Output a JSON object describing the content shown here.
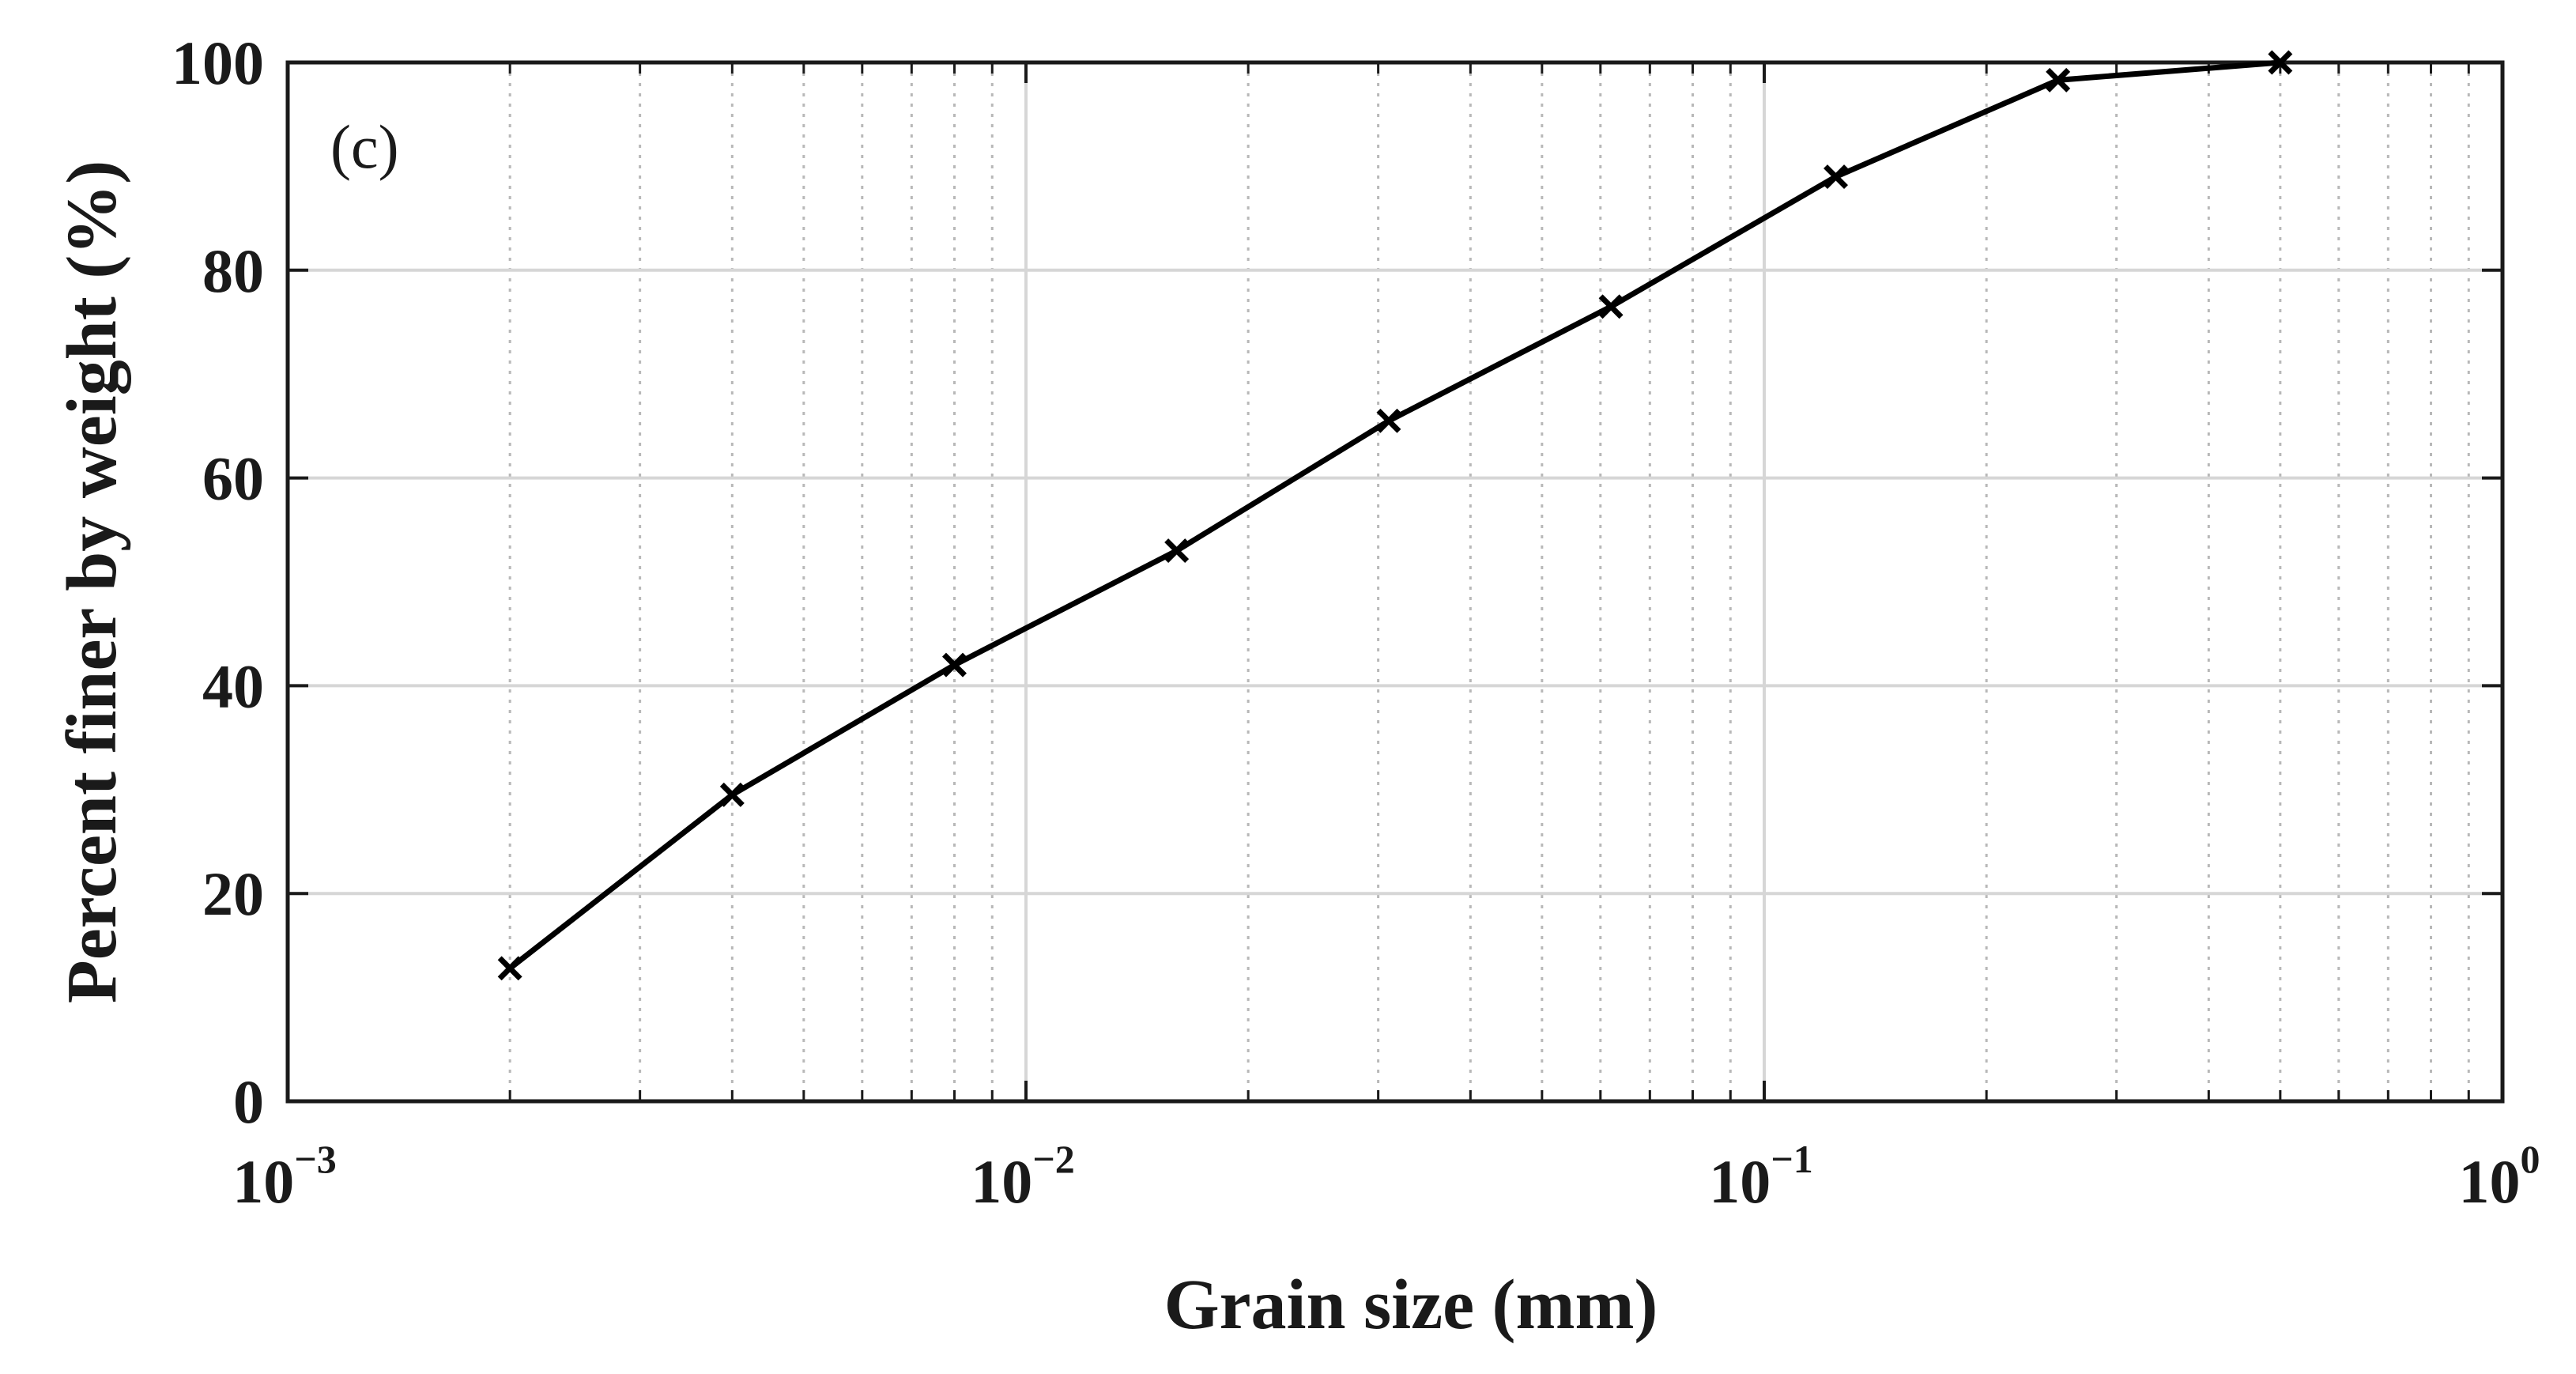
{
  "chart_data": {
    "type": "line",
    "panel_label": "(c)",
    "xlabel": "Grain size (mm)",
    "ylabel": "Percent  finer  by weight (%)",
    "x_scale": "log",
    "xlim": [
      0.001,
      1
    ],
    "ylim": [
      0,
      100
    ],
    "x_ticks": [
      {
        "base": "10",
        "exp": "−3"
      },
      {
        "base": "10",
        "exp": "−2"
      },
      {
        "base": "10",
        "exp": "−1"
      },
      {
        "base": "10",
        "exp": "0"
      }
    ],
    "y_ticks": [
      "0",
      "20",
      "40",
      "60",
      "80",
      "100"
    ],
    "grid": true,
    "minor_grid": true,
    "marker": "x",
    "line_color": "#000000",
    "series": [
      {
        "x": [
          0.002,
          0.004,
          0.008,
          0.016,
          0.031,
          0.062,
          0.125,
          0.25,
          0.5
        ],
        "y": [
          12.8,
          29.5,
          42.0,
          53.0,
          65.5,
          76.5,
          89.0,
          98.3,
          100.0
        ]
      }
    ]
  }
}
